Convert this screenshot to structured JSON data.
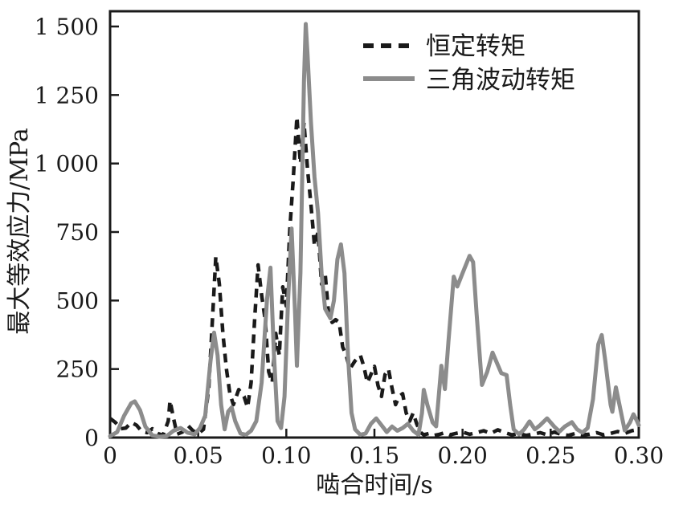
{
  "figure": {
    "background": "#ffffff",
    "frame_color": "#1a1a1a",
    "tick_color": "#1a1a1a"
  },
  "chart_data": {
    "type": "line",
    "title": "",
    "xlabel": "啮合时间/s",
    "ylabel": "最大等效应力/MPa",
    "xlim": [
      0,
      0.3
    ],
    "ylim": [
      0,
      1500
    ],
    "grid": false,
    "legend_position": "top-right-inside",
    "x_ticks": [
      0,
      0.05,
      0.1,
      0.15,
      0.2,
      0.25,
      0.3
    ],
    "x_tick_labels": [
      "0",
      "0.05",
      "0.10",
      "0.15",
      "0.20",
      "0.25",
      "0.30"
    ],
    "y_ticks": [
      0,
      250,
      500,
      750,
      1000,
      1250,
      1500
    ],
    "y_tick_labels": [
      "0",
      "250",
      "500",
      "750",
      "1 000",
      "1 250",
      "1 500"
    ],
    "series": [
      {
        "name": "恒定转矩",
        "style": "dashed",
        "color": "#1a1a1a",
        "points": [
          [
            0.0,
            70
          ],
          [
            0.003,
            55
          ],
          [
            0.006,
            32
          ],
          [
            0.009,
            35
          ],
          [
            0.012,
            55
          ],
          [
            0.015,
            45
          ],
          [
            0.018,
            22
          ],
          [
            0.021,
            18
          ],
          [
            0.024,
            32
          ],
          [
            0.027,
            15
          ],
          [
            0.03,
            8
          ],
          [
            0.033,
            60
          ],
          [
            0.034,
            135
          ],
          [
            0.036,
            70
          ],
          [
            0.038,
            12
          ],
          [
            0.041,
            20
          ],
          [
            0.044,
            45
          ],
          [
            0.047,
            25
          ],
          [
            0.05,
            15
          ],
          [
            0.053,
            30
          ],
          [
            0.056,
            180
          ],
          [
            0.058,
            420
          ],
          [
            0.06,
            660
          ],
          [
            0.062,
            560
          ],
          [
            0.064,
            380
          ],
          [
            0.066,
            250
          ],
          [
            0.068,
            160
          ],
          [
            0.07,
            120
          ],
          [
            0.073,
            175
          ],
          [
            0.076,
            150
          ],
          [
            0.078,
            110
          ],
          [
            0.08,
            200
          ],
          [
            0.082,
            430
          ],
          [
            0.084,
            630
          ],
          [
            0.086,
            520
          ],
          [
            0.088,
            430
          ],
          [
            0.09,
            240
          ],
          [
            0.092,
            200
          ],
          [
            0.094,
            380
          ],
          [
            0.096,
            300
          ],
          [
            0.098,
            550
          ],
          [
            0.1,
            480
          ],
          [
            0.102,
            760
          ],
          [
            0.104,
            950
          ],
          [
            0.106,
            1170
          ],
          [
            0.108,
            1000
          ],
          [
            0.11,
            1150
          ],
          [
            0.112,
            980
          ],
          [
            0.114,
            850
          ],
          [
            0.116,
            700
          ],
          [
            0.118,
            750
          ],
          [
            0.12,
            560
          ],
          [
            0.122,
            600
          ],
          [
            0.124,
            450
          ],
          [
            0.126,
            420
          ],
          [
            0.128,
            430
          ],
          [
            0.13,
            420
          ],
          [
            0.132,
            330
          ],
          [
            0.134,
            300
          ],
          [
            0.136,
            250
          ],
          [
            0.139,
            280
          ],
          [
            0.142,
            300
          ],
          [
            0.144,
            260
          ],
          [
            0.146,
            200
          ],
          [
            0.148,
            230
          ],
          [
            0.15,
            260
          ],
          [
            0.152,
            190
          ],
          [
            0.154,
            150
          ],
          [
            0.156,
            230
          ],
          [
            0.158,
            250
          ],
          [
            0.16,
            180
          ],
          [
            0.162,
            120
          ],
          [
            0.164,
            150
          ],
          [
            0.166,
            160
          ],
          [
            0.168,
            90
          ],
          [
            0.17,
            60
          ],
          [
            0.172,
            90
          ],
          [
            0.174,
            50
          ],
          [
            0.176,
            20
          ],
          [
            0.178,
            10
          ],
          [
            0.181,
            15
          ],
          [
            0.184,
            8
          ],
          [
            0.187,
            12
          ],
          [
            0.19,
            18
          ],
          [
            0.193,
            10
          ],
          [
            0.196,
            15
          ],
          [
            0.2,
            20
          ],
          [
            0.204,
            12
          ],
          [
            0.208,
            18
          ],
          [
            0.212,
            25
          ],
          [
            0.216,
            15
          ],
          [
            0.22,
            28
          ],
          [
            0.224,
            18
          ],
          [
            0.228,
            10
          ],
          [
            0.232,
            15
          ],
          [
            0.236,
            8
          ],
          [
            0.24,
            12
          ],
          [
            0.244,
            18
          ],
          [
            0.248,
            10
          ],
          [
            0.252,
            20
          ],
          [
            0.256,
            12
          ],
          [
            0.26,
            8
          ],
          [
            0.264,
            15
          ],
          [
            0.268,
            10
          ],
          [
            0.272,
            12
          ],
          [
            0.276,
            18
          ],
          [
            0.28,
            10
          ],
          [
            0.284,
            15
          ],
          [
            0.288,
            22
          ],
          [
            0.292,
            15
          ],
          [
            0.296,
            25
          ],
          [
            0.3,
            30
          ]
        ]
      },
      {
        "name": "三角波动转矩",
        "style": "solid",
        "color": "#8c8c8c",
        "points": [
          [
            0.0,
            5
          ],
          [
            0.004,
            20
          ],
          [
            0.008,
            80
          ],
          [
            0.012,
            125
          ],
          [
            0.014,
            132
          ],
          [
            0.017,
            100
          ],
          [
            0.02,
            40
          ],
          [
            0.024,
            8
          ],
          [
            0.028,
            3
          ],
          [
            0.032,
            5
          ],
          [
            0.036,
            25
          ],
          [
            0.04,
            35
          ],
          [
            0.044,
            18
          ],
          [
            0.048,
            12
          ],
          [
            0.051,
            35
          ],
          [
            0.054,
            80
          ],
          [
            0.057,
            280
          ],
          [
            0.059,
            383
          ],
          [
            0.061,
            300
          ],
          [
            0.063,
            120
          ],
          [
            0.065,
            30
          ],
          [
            0.067,
            95
          ],
          [
            0.069,
            110
          ],
          [
            0.071,
            60
          ],
          [
            0.074,
            15
          ],
          [
            0.077,
            10
          ],
          [
            0.08,
            25
          ],
          [
            0.083,
            60
          ],
          [
            0.086,
            200
          ],
          [
            0.089,
            500
          ],
          [
            0.091,
            620
          ],
          [
            0.093,
            300
          ],
          [
            0.095,
            60
          ],
          [
            0.097,
            35
          ],
          [
            0.099,
            150
          ],
          [
            0.101,
            500
          ],
          [
            0.103,
            763
          ],
          [
            0.105,
            450
          ],
          [
            0.106,
            262
          ],
          [
            0.108,
            600
          ],
          [
            0.11,
            1300
          ],
          [
            0.111,
            1509
          ],
          [
            0.112,
            1400
          ],
          [
            0.114,
            1150
          ],
          [
            0.116,
            950
          ],
          [
            0.118,
            820
          ],
          [
            0.12,
            600
          ],
          [
            0.122,
            470
          ],
          [
            0.125,
            435
          ],
          [
            0.127,
            500
          ],
          [
            0.129,
            650
          ],
          [
            0.131,
            705
          ],
          [
            0.133,
            600
          ],
          [
            0.135,
            300
          ],
          [
            0.137,
            90
          ],
          [
            0.139,
            30
          ],
          [
            0.142,
            10
          ],
          [
            0.145,
            15
          ],
          [
            0.148,
            50
          ],
          [
            0.151,
            70
          ],
          [
            0.154,
            45
          ],
          [
            0.157,
            20
          ],
          [
            0.16,
            40
          ],
          [
            0.163,
            25
          ],
          [
            0.166,
            35
          ],
          [
            0.169,
            50
          ],
          [
            0.172,
            25
          ],
          [
            0.175,
            10
          ],
          [
            0.177,
            90
          ],
          [
            0.178,
            174
          ],
          [
            0.18,
            120
          ],
          [
            0.183,
            55
          ],
          [
            0.185,
            41
          ],
          [
            0.188,
            262
          ],
          [
            0.19,
            177
          ],
          [
            0.192,
            350
          ],
          [
            0.195,
            587
          ],
          [
            0.197,
            551
          ],
          [
            0.2,
            600
          ],
          [
            0.204,
            663
          ],
          [
            0.206,
            640
          ],
          [
            0.208,
            450
          ],
          [
            0.211,
            192
          ],
          [
            0.214,
            240
          ],
          [
            0.217,
            310
          ],
          [
            0.219,
            280
          ],
          [
            0.222,
            235
          ],
          [
            0.225,
            228
          ],
          [
            0.227,
            120
          ],
          [
            0.229,
            30
          ],
          [
            0.232,
            12
          ],
          [
            0.235,
            30
          ],
          [
            0.238,
            59
          ],
          [
            0.241,
            30
          ],
          [
            0.244,
            45
          ],
          [
            0.248,
            70
          ],
          [
            0.252,
            40
          ],
          [
            0.255,
            22
          ],
          [
            0.258,
            40
          ],
          [
            0.262,
            56
          ],
          [
            0.265,
            30
          ],
          [
            0.268,
            18
          ],
          [
            0.271,
            35
          ],
          [
            0.274,
            140
          ],
          [
            0.277,
            340
          ],
          [
            0.279,
            374
          ],
          [
            0.281,
            280
          ],
          [
            0.284,
            120
          ],
          [
            0.285,
            94
          ],
          [
            0.287,
            183
          ],
          [
            0.289,
            120
          ],
          [
            0.292,
            26
          ],
          [
            0.295,
            55
          ],
          [
            0.297,
            85
          ],
          [
            0.299,
            60
          ],
          [
            0.3,
            45
          ]
        ]
      }
    ]
  }
}
